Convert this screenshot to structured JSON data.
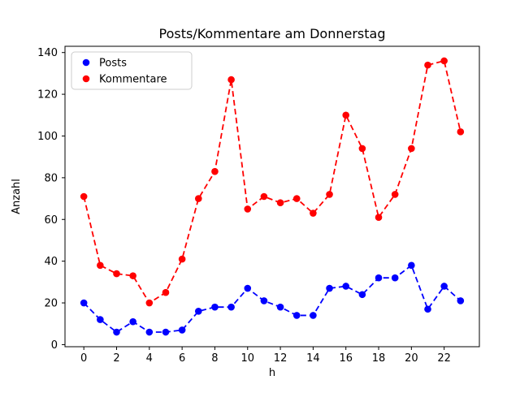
{
  "figure": {
    "title": "Posts/Kommentare am Donnerstag",
    "xlabel": "h",
    "ylabel": "Anzahl"
  },
  "chart_data": {
    "type": "line",
    "title": "Posts/Kommentare am Donnerstag",
    "xlabel": "h",
    "ylabel": "Anzahl",
    "line_style": "dashed",
    "marker": "circle",
    "grid": false,
    "legend_position": "upper left",
    "x": [
      0,
      1,
      2,
      3,
      4,
      5,
      6,
      7,
      8,
      9,
      10,
      11,
      12,
      13,
      14,
      15,
      16,
      17,
      18,
      19,
      20,
      21,
      22,
      23
    ],
    "series": [
      {
        "name": "Posts",
        "color": "#0000ff",
        "values": [
          20,
          12,
          6,
          11,
          6,
          6,
          7,
          16,
          18,
          18,
          27,
          21,
          18,
          14,
          14,
          27,
          28,
          24,
          32,
          32,
          38,
          17,
          28,
          21
        ]
      },
      {
        "name": "Kommentare",
        "color": "#ff0000",
        "values": [
          71,
          38,
          34,
          33,
          20,
          25,
          41,
          70,
          83,
          127,
          65,
          71,
          68,
          70,
          63,
          72,
          110,
          94,
          61,
          72,
          94,
          134,
          136,
          102
        ]
      }
    ],
    "xticks": [
      0,
      2,
      4,
      6,
      8,
      10,
      12,
      14,
      16,
      18,
      20,
      22
    ],
    "yticks": [
      0,
      20,
      40,
      60,
      80,
      100,
      120,
      140
    ],
    "xlim": [
      -1.15,
      24.15
    ],
    "ylim": [
      -1,
      143
    ]
  }
}
